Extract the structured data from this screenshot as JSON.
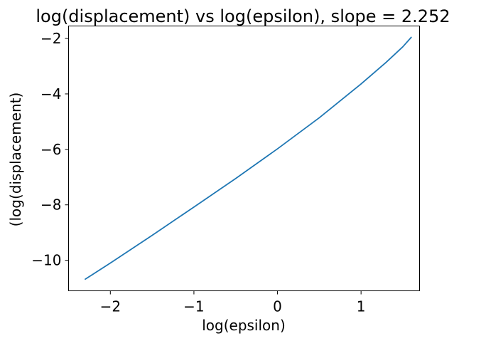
{
  "chart_data": {
    "type": "line",
    "title": "log(displacement) vs log(epsilon), slope = 2.252",
    "xlabel": "log(epsilon)",
    "ylabel": "(log(displacement)",
    "xlim": [
      -2.5,
      1.7
    ],
    "ylim": [
      -11.1,
      -1.55
    ],
    "grid": false,
    "xticks": [
      -2,
      -1,
      0,
      1
    ],
    "xtick_labels": [
      "−2",
      "−1",
      "0",
      "1"
    ],
    "yticks": [
      -10,
      -8,
      -6,
      -4,
      -2
    ],
    "ytick_labels": [
      "−10",
      "−8",
      "−6",
      "−4",
      "−2"
    ],
    "series": [
      {
        "name": "log(displacement)",
        "color": "#1f77b4",
        "x": [
          -2.3,
          -2.0,
          -1.5,
          -1.0,
          -0.5,
          0.0,
          0.5,
          1.0,
          1.3,
          1.5,
          1.6
        ],
        "y": [
          -10.68,
          -10.1,
          -9.1,
          -8.08,
          -7.05,
          -5.98,
          -4.86,
          -3.64,
          -2.86,
          -2.3,
          -1.96
        ]
      }
    ]
  }
}
